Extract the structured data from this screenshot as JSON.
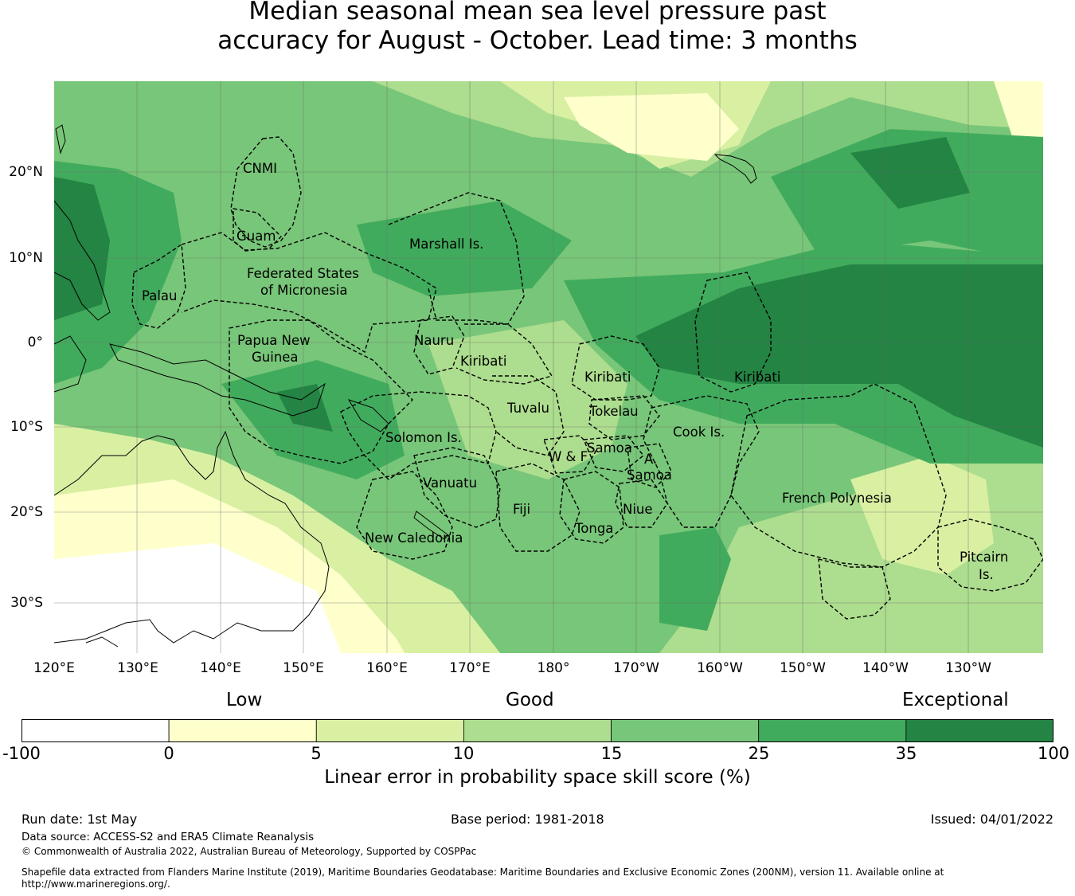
{
  "title": {
    "line1": "Median seasonal mean sea level pressure past",
    "line2": "accuracy for August - October. Lead time: 3 months"
  },
  "map": {
    "longitude_labels": [
      "120°E",
      "130°E",
      "140°E",
      "150°E",
      "160°E",
      "170°E",
      "180°",
      "170°W",
      "160°W",
      "150°W",
      "140°W",
      "130°W"
    ],
    "latitude_labels": [
      "20°N",
      "10°N",
      "0°",
      "10°S",
      "20°S",
      "30°S"
    ],
    "regions": {
      "cnmi": "CNMI",
      "guam": "Guam",
      "marshall": "Marshall Is.",
      "fsm_1": "Federated States",
      "fsm_2": "of Micronesia",
      "palau": "Palau",
      "png_1": "Papua New",
      "png_2": "Guinea",
      "nauru": "Nauru",
      "kiribati_west": "Kiribati",
      "kiribati_central": "Kiribati",
      "kiribati_east": "Kiribati",
      "tuvalu": "Tuvalu",
      "tokelau": "Tokelau",
      "solomon": "Solomon Is.",
      "samoa": "Samoa",
      "wallis_futuna": "W & F",
      "american_samoa_1": "A.",
      "american_samoa_2": "Samoa",
      "cook": "Cook Is.",
      "vanuatu": "Vanuatu",
      "fiji": "Fiji",
      "niue": "Niue",
      "tonga": "Tonga",
      "french_polynesia": "French Polynesia",
      "new_caledonia": "New Caledonia",
      "pitcairn_1": "Pitcairn",
      "pitcairn_2": "Is."
    }
  },
  "legend": {
    "categories": [
      "Low",
      "Good",
      "Exceptional"
    ],
    "bins": [
      {
        "from": -100,
        "to": 0,
        "color": "#ffffff"
      },
      {
        "from": 0,
        "to": 5,
        "color": "#ffffcc"
      },
      {
        "from": 5,
        "to": 10,
        "color": "#d9f0a3"
      },
      {
        "from": 10,
        "to": 15,
        "color": "#addd8e"
      },
      {
        "from": 15,
        "to": 25,
        "color": "#78c679"
      },
      {
        "from": 25,
        "to": 35,
        "color": "#41ab5d"
      },
      {
        "from": 35,
        "to": 100,
        "color": "#238443"
      }
    ],
    "ticks": [
      "-100",
      "0",
      "5",
      "10",
      "15",
      "25",
      "35",
      "100"
    ],
    "label": "Linear error in probability space skill score (%)"
  },
  "footer": {
    "run_date": "Run date: 1st May",
    "base_period": "Base period: 1981-2018",
    "issued": "Issued: 04/01/2022",
    "data_source": "Data source: ACCESS-S2 and ERA5 Climate Reanalysis",
    "copyright": "© Commonwealth of Australia 2022, Australian Bureau of Meteorology, Supported by COSPPac",
    "shapefile_1": "Shapefile data extracted from Flanders Marine Institute (2019), Maritime Boundaries Geodatabase: Maritime Boundaries and Exclusive Economic Zones (200NM), version 11. Available online at",
    "shapefile_2": "http://www.marineregions.org/."
  }
}
